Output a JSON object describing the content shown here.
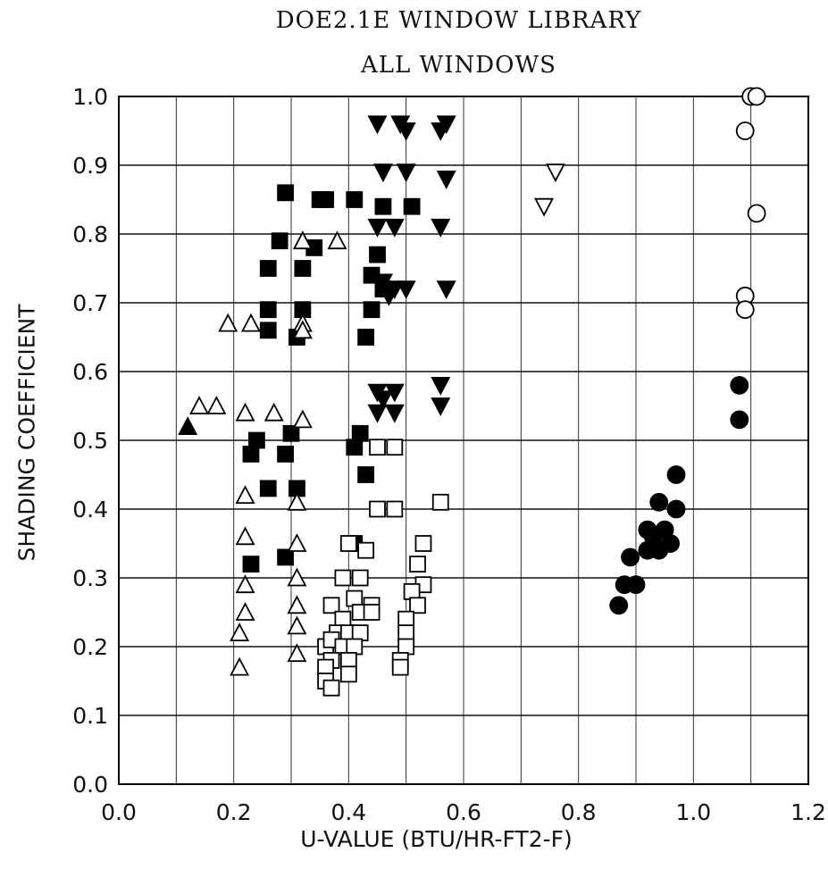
{
  "chart_data": {
    "type": "scatter",
    "title": "DOE2.1E WINDOW LIBRARY",
    "subtitle": "ALL WINDOWS",
    "xlabel": "U-VALUE (BTU/HR-FT2-F)",
    "ylabel": "SHADING COEFFICIENT",
    "xlim": [
      0.0,
      1.2
    ],
    "ylim": [
      0.0,
      1.0
    ],
    "x_ticks": [
      "0.0",
      "0.2",
      "0.4",
      "0.6",
      "0.8",
      "1.0",
      "1.2"
    ],
    "y_ticks": [
      "0.0",
      "0.1",
      "0.2",
      "0.3",
      "0.4",
      "0.5",
      "0.6",
      "0.7",
      "0.8",
      "0.9",
      "1.0"
    ],
    "grid": true,
    "series": [
      {
        "marker": "filled-square",
        "color": "#000000",
        "points": [
          [
            0.29,
            0.86
          ],
          [
            0.35,
            0.85
          ],
          [
            0.36,
            0.85
          ],
          [
            0.41,
            0.85
          ],
          [
            0.46,
            0.84
          ],
          [
            0.51,
            0.84
          ],
          [
            0.28,
            0.79
          ],
          [
            0.34,
            0.78
          ],
          [
            0.26,
            0.75
          ],
          [
            0.32,
            0.75
          ],
          [
            0.45,
            0.77
          ],
          [
            0.44,
            0.74
          ],
          [
            0.46,
            0.72
          ],
          [
            0.26,
            0.69
          ],
          [
            0.32,
            0.69
          ],
          [
            0.44,
            0.69
          ],
          [
            0.26,
            0.66
          ],
          [
            0.31,
            0.65
          ],
          [
            0.43,
            0.65
          ],
          [
            0.3,
            0.51
          ],
          [
            0.42,
            0.51
          ],
          [
            0.24,
            0.5
          ],
          [
            0.41,
            0.49
          ],
          [
            0.23,
            0.48
          ],
          [
            0.29,
            0.48
          ],
          [
            0.43,
            0.45
          ],
          [
            0.26,
            0.43
          ],
          [
            0.31,
            0.43
          ],
          [
            0.41,
            0.35
          ],
          [
            0.29,
            0.33
          ],
          [
            0.23,
            0.32
          ]
        ]
      },
      {
        "marker": "open-triangle-up",
        "color": "#000000",
        "points": [
          [
            0.32,
            0.79
          ],
          [
            0.38,
            0.79
          ],
          [
            0.19,
            0.67
          ],
          [
            0.23,
            0.67
          ],
          [
            0.32,
            0.67
          ],
          [
            0.32,
            0.66
          ],
          [
            0.14,
            0.55
          ],
          [
            0.17,
            0.55
          ],
          [
            0.22,
            0.54
          ],
          [
            0.27,
            0.54
          ],
          [
            0.32,
            0.53
          ],
          [
            0.22,
            0.42
          ],
          [
            0.31,
            0.41
          ],
          [
            0.22,
            0.36
          ],
          [
            0.31,
            0.35
          ],
          [
            0.22,
            0.29
          ],
          [
            0.31,
            0.3
          ],
          [
            0.22,
            0.25
          ],
          [
            0.31,
            0.26
          ],
          [
            0.21,
            0.22
          ],
          [
            0.31,
            0.23
          ],
          [
            0.31,
            0.19
          ],
          [
            0.21,
            0.17
          ]
        ]
      },
      {
        "marker": "filled-triangle-up",
        "color": "#000000",
        "points": [
          [
            0.12,
            0.52
          ]
        ]
      },
      {
        "marker": "filled-triangle-down",
        "color": "#000000",
        "points": [
          [
            0.45,
            0.96
          ],
          [
            0.49,
            0.96
          ],
          [
            0.5,
            0.95
          ],
          [
            0.56,
            0.95
          ],
          [
            0.57,
            0.96
          ],
          [
            0.46,
            0.89
          ],
          [
            0.5,
            0.89
          ],
          [
            0.57,
            0.88
          ],
          [
            0.45,
            0.81
          ],
          [
            0.48,
            0.81
          ],
          [
            0.56,
            0.81
          ],
          [
            0.46,
            0.73
          ],
          [
            0.47,
            0.71
          ],
          [
            0.5,
            0.72
          ],
          [
            0.57,
            0.72
          ],
          [
            0.48,
            0.72
          ],
          [
            0.45,
            0.57
          ],
          [
            0.48,
            0.57
          ],
          [
            0.56,
            0.58
          ],
          [
            0.45,
            0.54
          ],
          [
            0.48,
            0.54
          ],
          [
            0.56,
            0.55
          ],
          [
            0.46,
            0.56
          ]
        ]
      },
      {
        "marker": "open-triangle-down",
        "color": "#000000",
        "points": [
          [
            0.76,
            0.89
          ],
          [
            0.74,
            0.84
          ]
        ]
      },
      {
        "marker": "open-square",
        "color": "#000000",
        "points": [
          [
            0.45,
            0.49
          ],
          [
            0.48,
            0.49
          ],
          [
            0.45,
            0.4
          ],
          [
            0.48,
            0.4
          ],
          [
            0.56,
            0.41
          ],
          [
            0.43,
            0.34
          ],
          [
            0.4,
            0.35
          ],
          [
            0.53,
            0.35
          ],
          [
            0.39,
            0.3
          ],
          [
            0.42,
            0.3
          ],
          [
            0.52,
            0.32
          ],
          [
            0.53,
            0.29
          ],
          [
            0.51,
            0.28
          ],
          [
            0.37,
            0.26
          ],
          [
            0.41,
            0.27
          ],
          [
            0.44,
            0.26
          ],
          [
            0.52,
            0.26
          ],
          [
            0.39,
            0.24
          ],
          [
            0.42,
            0.25
          ],
          [
            0.44,
            0.25
          ],
          [
            0.5,
            0.24
          ],
          [
            0.38,
            0.22
          ],
          [
            0.4,
            0.22
          ],
          [
            0.42,
            0.22
          ],
          [
            0.5,
            0.22
          ],
          [
            0.36,
            0.2
          ],
          [
            0.37,
            0.21
          ],
          [
            0.39,
            0.2
          ],
          [
            0.41,
            0.2
          ],
          [
            0.5,
            0.2
          ],
          [
            0.37,
            0.18
          ],
          [
            0.4,
            0.18
          ],
          [
            0.49,
            0.18
          ],
          [
            0.36,
            0.17
          ],
          [
            0.4,
            0.16
          ],
          [
            0.49,
            0.17
          ],
          [
            0.36,
            0.15
          ],
          [
            0.37,
            0.14
          ]
        ]
      },
      {
        "marker": "filled-circle",
        "color": "#000000",
        "points": [
          [
            1.08,
            0.58
          ],
          [
            1.08,
            0.53
          ],
          [
            0.97,
            0.45
          ],
          [
            0.94,
            0.41
          ],
          [
            0.97,
            0.4
          ],
          [
            0.92,
            0.37
          ],
          [
            0.95,
            0.37
          ],
          [
            0.93,
            0.36
          ],
          [
            0.92,
            0.34
          ],
          [
            0.94,
            0.34
          ],
          [
            0.96,
            0.35
          ],
          [
            0.89,
            0.33
          ],
          [
            0.88,
            0.29
          ],
          [
            0.9,
            0.29
          ],
          [
            0.87,
            0.26
          ]
        ]
      },
      {
        "marker": "open-circle",
        "color": "#000000",
        "points": [
          [
            1.1,
            1.0
          ],
          [
            1.11,
            1.0
          ],
          [
            1.09,
            0.95
          ],
          [
            1.11,
            0.83
          ],
          [
            1.09,
            0.71
          ],
          [
            1.09,
            0.69
          ]
        ]
      }
    ]
  }
}
